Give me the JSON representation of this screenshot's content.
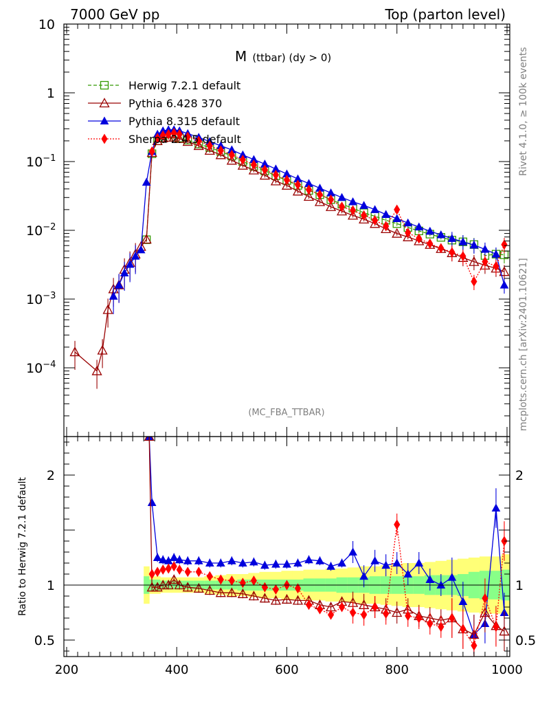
{
  "header": {
    "energy_label": "7000 GeV pp",
    "process_label": "Top (parton level)"
  },
  "plot_title": {
    "main": "M",
    "sub": "(ttbar) (dy > 0)"
  },
  "analysis_label": "(MC_FBA_TTBAR)",
  "side_labels": {
    "rivet": "Rivet 4.1.0, ≥ 100k events",
    "mcplots": "mcplots.cern.ch [arXiv:2401.10621]"
  },
  "colors": {
    "herwig": "#339900",
    "pythia6": "#990000",
    "pythia8": "#0000dd",
    "sherpa": "#ff0000",
    "band_inner": "#88ff88",
    "band_outer": "#ffff77"
  },
  "chart_data": [
    {
      "type": "line",
      "title": "M (ttbar) (dy > 0)",
      "xlabel": "",
      "ylabel": "",
      "yscale": "log",
      "xlim": [
        195,
        1005
      ],
      "ylim": [
        1e-05,
        10
      ],
      "y_ticks": [
        {
          "value": 10,
          "label": "10"
        },
        {
          "value": 1,
          "label": "1"
        },
        {
          "value": 0.1,
          "label": "10",
          "exp": "−1"
        },
        {
          "value": 0.01,
          "label": "10",
          "exp": "−2"
        },
        {
          "value": 0.001,
          "label": "10",
          "exp": "−3"
        },
        {
          "value": 0.0001,
          "label": "10",
          "exp": "−4"
        }
      ],
      "legend": {
        "position": "top-left"
      },
      "series": [
        {
          "name": "Herwig 7.2.1 default",
          "key": "herwig",
          "marker": "open-square",
          "line": "dashed",
          "x": [
            345,
            355,
            365,
            375,
            385,
            395,
            405,
            420,
            440,
            460,
            480,
            500,
            520,
            540,
            560,
            580,
            600,
            620,
            640,
            660,
            680,
            700,
            720,
            740,
            760,
            780,
            800,
            820,
            840,
            860,
            880,
            900,
            920,
            940,
            960,
            980,
            995
          ],
          "y": [
            0.0073,
            0.13,
            0.2,
            0.22,
            0.225,
            0.225,
            0.22,
            0.205,
            0.18,
            0.16,
            0.14,
            0.12,
            0.1,
            0.085,
            0.073,
            0.062,
            0.053,
            0.045,
            0.038,
            0.033,
            0.028,
            0.024,
            0.021,
            0.018,
            0.016,
            0.014,
            0.0125,
            0.011,
            0.0098,
            0.0088,
            0.0079,
            0.0072,
            0.0068,
            0.0062,
            0.0043,
            0.0045,
            0.0044
          ]
        },
        {
          "name": "Pythia 6.428 370",
          "key": "pythia6",
          "marker": "open-triangle",
          "line": "solid",
          "x": [
            215,
            255,
            265,
            275,
            285,
            295,
            305,
            315,
            325,
            335,
            345,
            355,
            365,
            375,
            385,
            395,
            405,
            420,
            440,
            460,
            480,
            500,
            520,
            540,
            560,
            580,
            600,
            620,
            640,
            660,
            680,
            700,
            720,
            740,
            760,
            780,
            800,
            820,
            840,
            860,
            880,
            900,
            920,
            940,
            960,
            980,
            995
          ],
          "y": [
            0.00017,
            9e-05,
            0.00018,
            0.0007,
            0.0014,
            0.0016,
            0.0027,
            0.0034,
            0.0045,
            0.0058,
            0.0074,
            0.135,
            0.2,
            0.22,
            0.225,
            0.225,
            0.215,
            0.195,
            0.17,
            0.145,
            0.125,
            0.104,
            0.088,
            0.075,
            0.063,
            0.052,
            0.045,
            0.037,
            0.031,
            0.026,
            0.022,
            0.019,
            0.0165,
            0.0145,
            0.0125,
            0.0105,
            0.009,
            0.008,
            0.007,
            0.0062,
            0.0054,
            0.0047,
            0.004,
            0.0035,
            0.0031,
            0.0028,
            0.0025
          ]
        },
        {
          "name": "Pythia 8.315 default",
          "key": "pythia8",
          "marker": "filled-triangle",
          "line": "solid",
          "x": [
            285,
            295,
            305,
            315,
            325,
            335,
            345,
            355,
            365,
            375,
            385,
            395,
            405,
            420,
            440,
            460,
            480,
            500,
            520,
            540,
            560,
            580,
            600,
            620,
            640,
            660,
            680,
            700,
            720,
            740,
            760,
            780,
            800,
            820,
            840,
            860,
            880,
            900,
            920,
            940,
            960,
            980,
            995
          ],
          "y": [
            0.0011,
            0.0016,
            0.0024,
            0.0032,
            0.0042,
            0.0052,
            0.05,
            0.14,
            0.25,
            0.28,
            0.29,
            0.29,
            0.28,
            0.255,
            0.225,
            0.195,
            0.17,
            0.148,
            0.125,
            0.107,
            0.092,
            0.078,
            0.066,
            0.056,
            0.048,
            0.041,
            0.035,
            0.03,
            0.026,
            0.023,
            0.02,
            0.017,
            0.0148,
            0.0128,
            0.0112,
            0.0097,
            0.0086,
            0.0076,
            0.0068,
            0.0061,
            0.0053,
            0.0045,
            0.0016
          ]
        },
        {
          "name": "Sherpa 2.4.5 default",
          "key": "sherpa",
          "marker": "filled-diamond",
          "line": "dotted",
          "x": [
            355,
            365,
            375,
            385,
            395,
            405,
            420,
            440,
            460,
            480,
            500,
            520,
            540,
            560,
            580,
            600,
            620,
            640,
            660,
            680,
            700,
            720,
            740,
            760,
            780,
            800,
            820,
            840,
            860,
            880,
            900,
            920,
            940,
            960,
            980,
            995
          ],
          "y": [
            0.14,
            0.22,
            0.24,
            0.25,
            0.26,
            0.25,
            0.23,
            0.2,
            0.17,
            0.145,
            0.125,
            0.106,
            0.09,
            0.076,
            0.064,
            0.054,
            0.046,
            0.039,
            0.033,
            0.028,
            0.022,
            0.0195,
            0.0165,
            0.014,
            0.0115,
            0.02,
            0.0092,
            0.0076,
            0.0064,
            0.0055,
            0.0048,
            0.0042,
            0.0018,
            0.0035,
            0.003,
            0.0062
          ]
        }
      ]
    },
    {
      "type": "line",
      "title": "",
      "xlabel": "",
      "ylabel": "Ratio to Herwig 7.2.1 default",
      "xlim": [
        195,
        1005
      ],
      "ylim": [
        0.35,
        2.35
      ],
      "x_ticks": [
        200,
        400,
        600,
        800,
        1000
      ],
      "y_ticks": [
        {
          "value": 2,
          "label": "2"
        },
        {
          "value": 1,
          "label": "1"
        },
        {
          "value": 0.5,
          "label": "0.5"
        }
      ],
      "reference_line": 1,
      "band": {
        "x": [
          345,
          355,
          375,
          395,
          415,
          435,
          455,
          475,
          495,
          515,
          535,
          555,
          575,
          595,
          615,
          635,
          655,
          675,
          695,
          715,
          735,
          755,
          775,
          795,
          815,
          835,
          855,
          875,
          895,
          915,
          935,
          955,
          975,
          995
        ],
        "inner": [
          0.08,
          0.05,
          0.04,
          0.04,
          0.04,
          0.04,
          0.04,
          0.04,
          0.04,
          0.05,
          0.05,
          0.05,
          0.05,
          0.05,
          0.05,
          0.06,
          0.06,
          0.06,
          0.07,
          0.07,
          0.07,
          0.08,
          0.08,
          0.08,
          0.08,
          0.08,
          0.09,
          0.09,
          0.09,
          0.1,
          0.12,
          0.13,
          0.13,
          0.14
        ],
        "outer": [
          0.17,
          0.08,
          0.07,
          0.07,
          0.07,
          0.07,
          0.08,
          0.09,
          0.1,
          0.1,
          0.11,
          0.12,
          0.12,
          0.13,
          0.13,
          0.14,
          0.14,
          0.15,
          0.15,
          0.16,
          0.17,
          0.17,
          0.18,
          0.19,
          0.2,
          0.2,
          0.21,
          0.22,
          0.23,
          0.24,
          0.25,
          0.26,
          0.26,
          0.28
        ]
      },
      "series": [
        {
          "name": "Pythia 8.315 default",
          "key": "pythia8",
          "marker": "filled-triangle",
          "x": [
            350,
            355,
            365,
            375,
            385,
            395,
            405,
            420,
            440,
            460,
            480,
            500,
            520,
            540,
            560,
            580,
            600,
            620,
            640,
            660,
            680,
            700,
            720,
            740,
            760,
            780,
            800,
            820,
            840,
            860,
            880,
            900,
            920,
            940,
            960,
            980,
            995
          ],
          "y": [
            2.35,
            1.75,
            1.25,
            1.23,
            1.22,
            1.25,
            1.23,
            1.22,
            1.22,
            1.2,
            1.2,
            1.22,
            1.2,
            1.21,
            1.18,
            1.19,
            1.19,
            1.2,
            1.23,
            1.22,
            1.17,
            1.2,
            1.3,
            1.08,
            1.22,
            1.18,
            1.2,
            1.1,
            1.2,
            1.05,
            1.0,
            1.07,
            0.85,
            0.55,
            0.65,
            1.7,
            0.75
          ]
        },
        {
          "name": "Pythia 6.428 370",
          "key": "pythia6",
          "marker": "open-triangle",
          "x": [
            350,
            355,
            365,
            375,
            385,
            395,
            405,
            420,
            440,
            460,
            480,
            500,
            520,
            540,
            560,
            580,
            600,
            620,
            640,
            660,
            680,
            700,
            720,
            740,
            760,
            780,
            800,
            820,
            840,
            860,
            880,
            900,
            920,
            940,
            960,
            980,
            995
          ],
          "y": [
            2.35,
            0.98,
            0.98,
            1.0,
            1.0,
            1.05,
            1.0,
            0.98,
            0.97,
            0.95,
            0.93,
            0.93,
            0.92,
            0.9,
            0.88,
            0.86,
            0.87,
            0.86,
            0.86,
            0.82,
            0.8,
            0.85,
            0.84,
            0.82,
            0.8,
            0.78,
            0.75,
            0.78,
            0.72,
            0.7,
            0.68,
            0.7,
            0.6,
            0.55,
            0.75,
            0.63,
            0.58
          ]
        },
        {
          "name": "Sherpa 2.4.5 default",
          "key": "sherpa",
          "marker": "filled-diamond",
          "x": [
            355,
            365,
            375,
            385,
            395,
            405,
            420,
            440,
            460,
            480,
            500,
            520,
            540,
            560,
            580,
            600,
            620,
            640,
            660,
            680,
            700,
            720,
            740,
            760,
            780,
            800,
            820,
            840,
            860,
            880,
            900,
            920,
            940,
            960,
            980,
            995
          ],
          "y": [
            1.1,
            1.12,
            1.14,
            1.15,
            1.17,
            1.14,
            1.12,
            1.12,
            1.08,
            1.05,
            1.04,
            1.02,
            1.04,
            0.98,
            0.96,
            1.0,
            0.97,
            0.82,
            0.78,
            0.73,
            0.8,
            0.75,
            0.73,
            0.8,
            0.74,
            1.55,
            0.72,
            0.7,
            0.65,
            0.62,
            0.7,
            0.6,
            0.45,
            0.88,
            0.62,
            1.4
          ]
        }
      ]
    }
  ]
}
